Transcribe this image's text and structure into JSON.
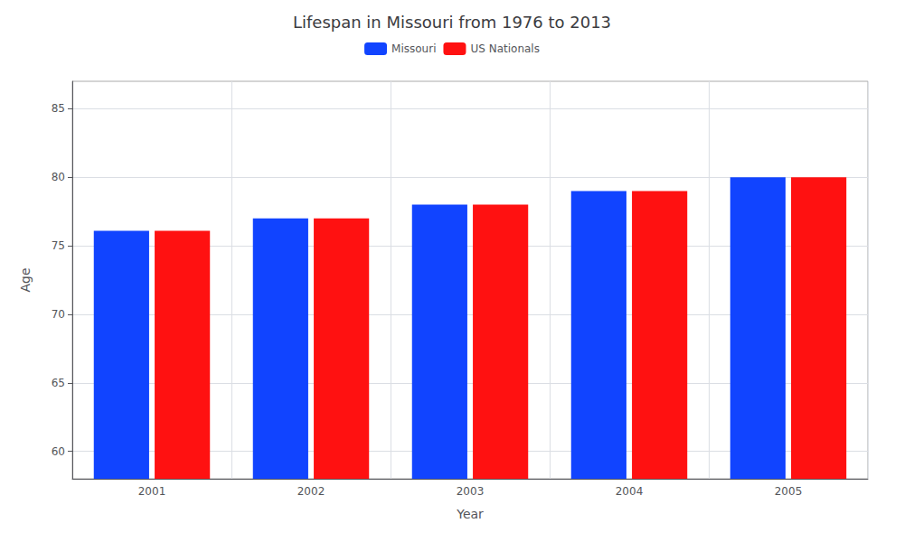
{
  "chart_data": {
    "type": "bar",
    "title": "Lifespan in Missouri from 1976 to 2013",
    "xlabel": "Year",
    "ylabel": "Age",
    "categories": [
      "2001",
      "2002",
      "2003",
      "2004",
      "2005"
    ],
    "series": [
      {
        "name": "Missouri",
        "color": "#1144ff",
        "values": [
          76.1,
          77.0,
          78.0,
          79.0,
          80.0
        ]
      },
      {
        "name": "US Nationals",
        "color": "#ff1111",
        "values": [
          76.1,
          77.0,
          78.0,
          79.0,
          80.0
        ]
      }
    ],
    "ylim": [
      58,
      87
    ],
    "yticks": [
      60,
      65,
      70,
      75,
      80,
      85
    ],
    "grid": true,
    "legend": "top"
  }
}
